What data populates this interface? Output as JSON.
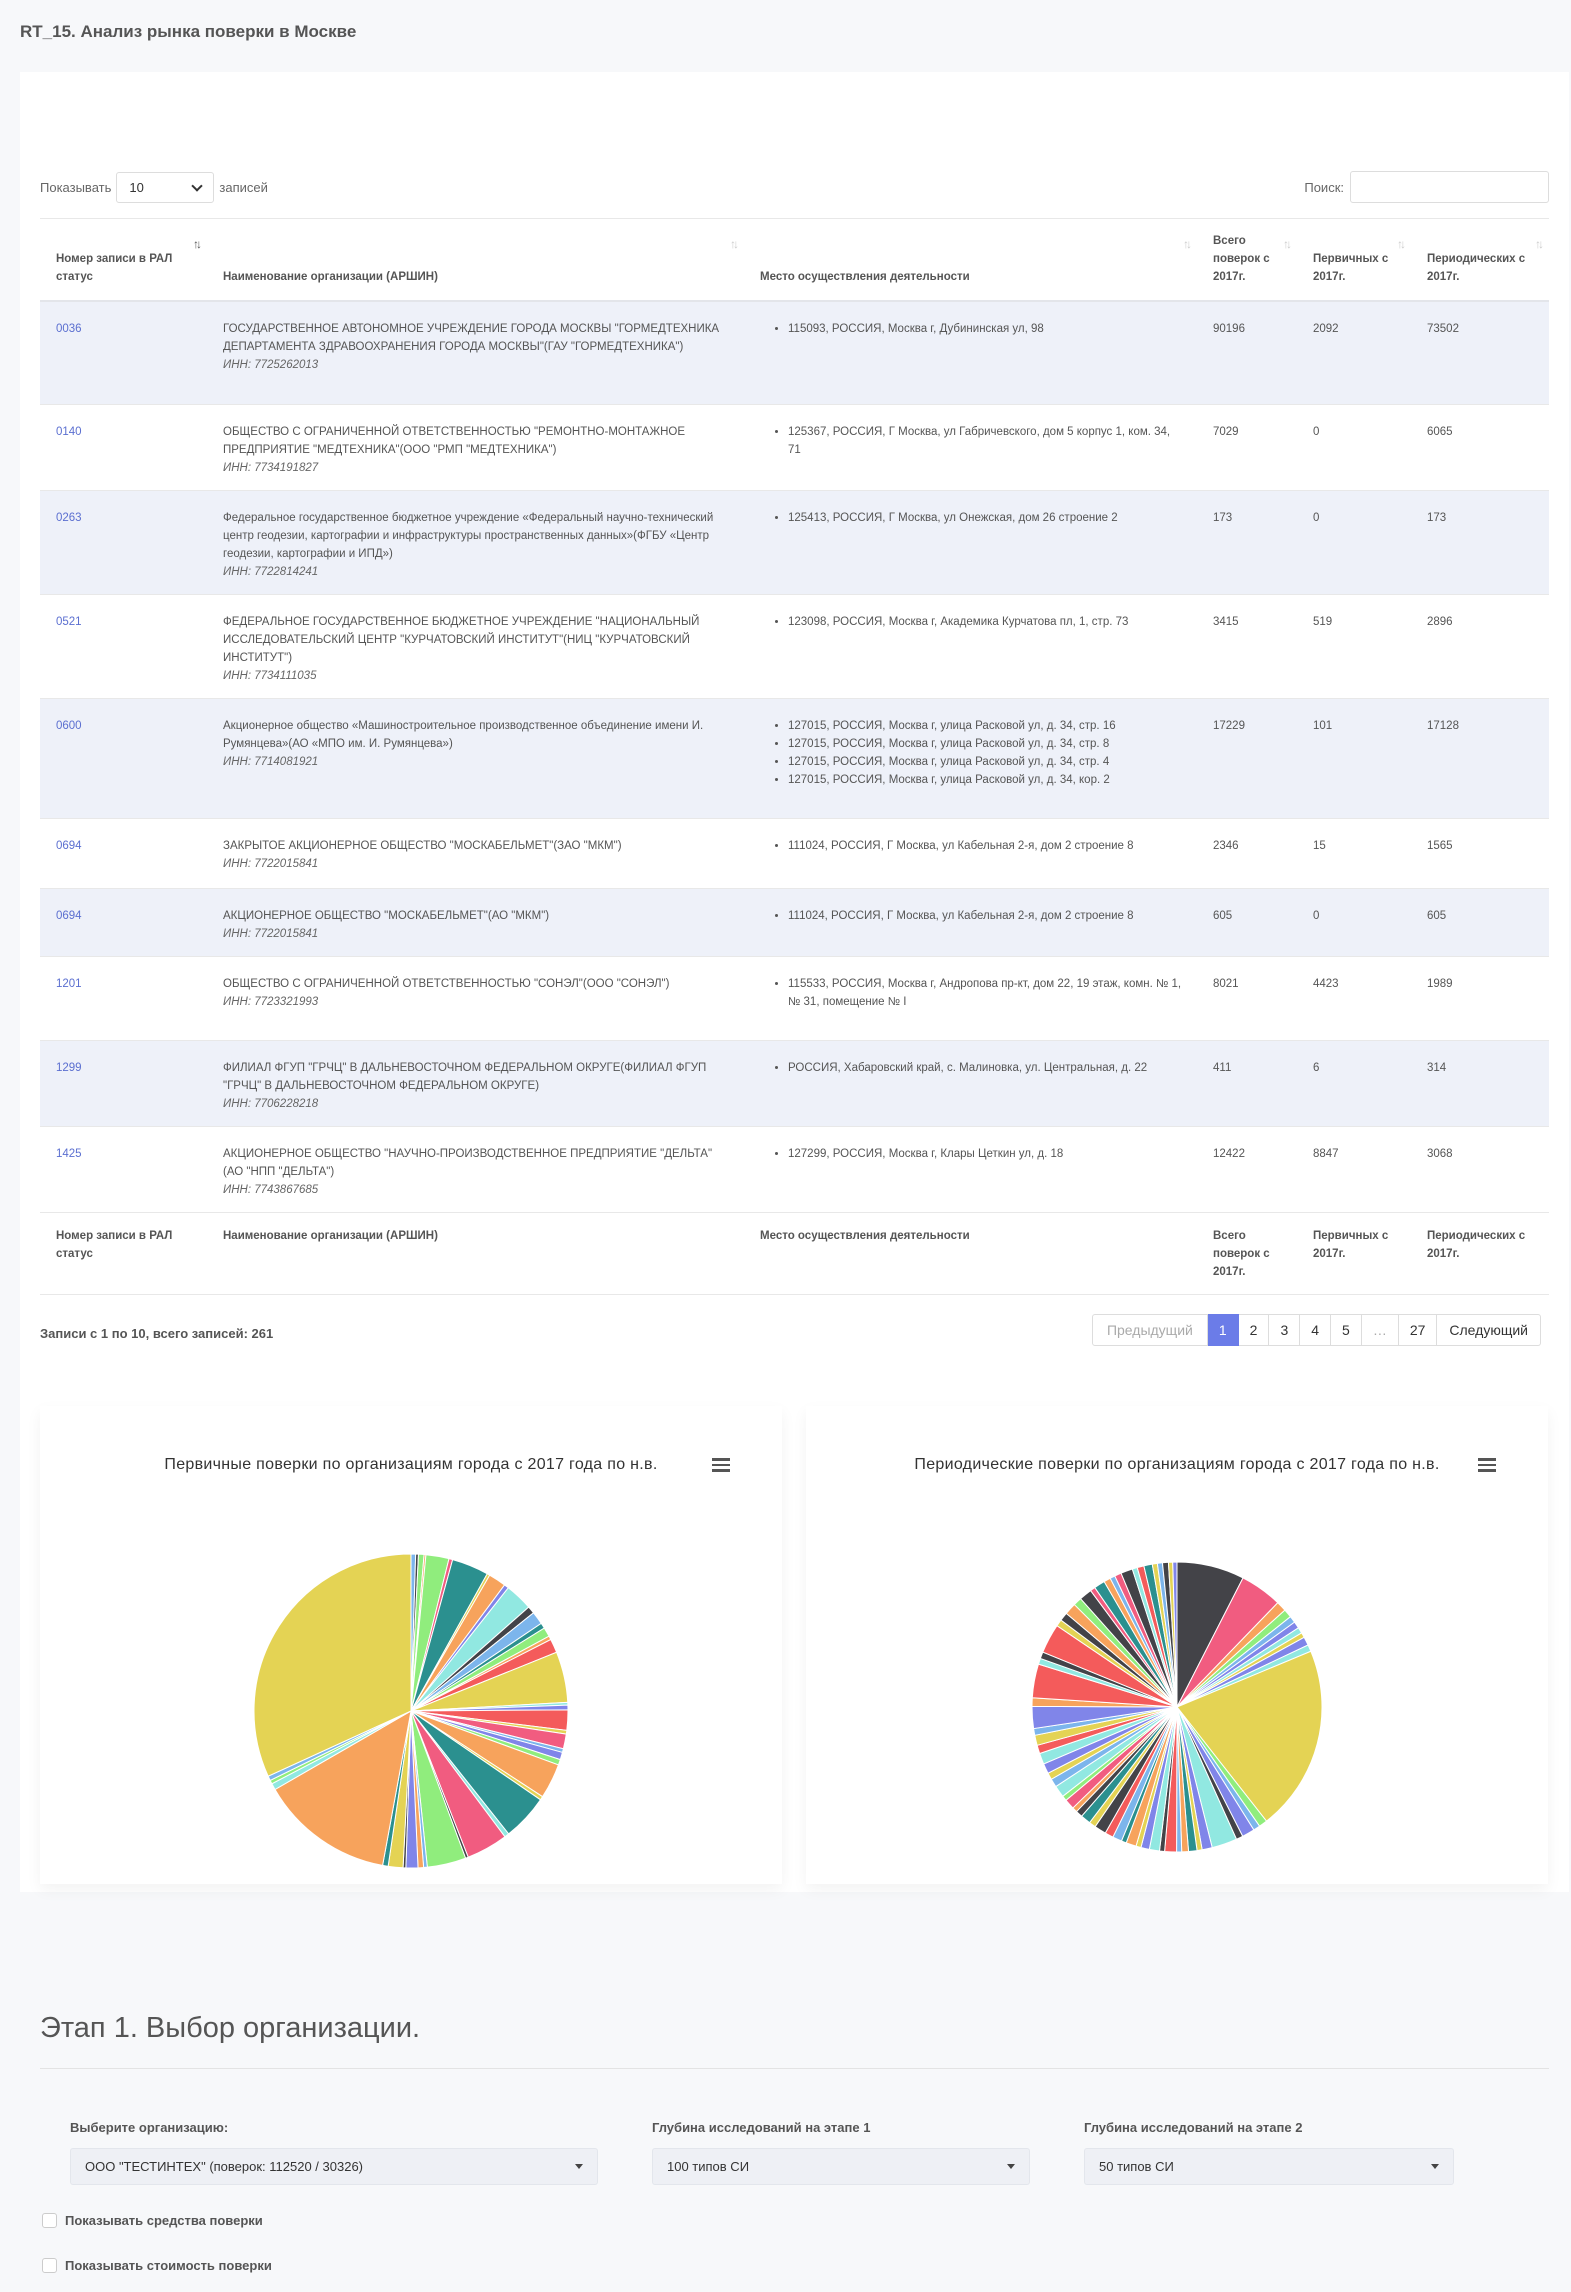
{
  "page": {
    "title": "RT_15. Анализ рынка поверки в Москве"
  },
  "length": {
    "prefix": "Показывать",
    "value": "10",
    "suffix": "записей"
  },
  "search": {
    "label": "Поиск:",
    "value": ""
  },
  "columns": [
    "Номер записи в РАЛ статус",
    "Наименование организации (АРШИН)",
    "Место осуществления деятельности",
    "Всего поверок с 2017г.",
    "Первичных с 2017г.",
    "Периодических с 2017г."
  ],
  "rows": [
    {
      "num": "0036",
      "name": "ГОСУДАРСТВЕННОЕ АВТОНОМНОЕ УЧРЕЖДЕНИЕ ГОРОДА МОСКВЫ \"ГОРМЕДТЕХНИКА ДЕПАРТАМЕНТА ЗДРАВООХРАНЕНИЯ ГОРОДА МОСКВЫ\"(ГАУ \"ГОРМЕДТЕХНИКА\")",
      "inn": "ИНН: 7725262013",
      "places": [
        "115093, РОССИЯ, Москва г, Дубининская ул, 98"
      ],
      "total": "90196",
      "primary": "2092",
      "periodic": "73502"
    },
    {
      "num": "0140",
      "name": "ОБЩЕСТВО С ОГРАНИЧЕННОЙ ОТВЕТСТВЕННОСТЬЮ \"РЕМОНТНО-МОНТАЖНОЕ ПРЕДПРИЯТИЕ \"МЕДТЕХНИКА\"(ООО \"РМП \"МЕДТЕХНИКА\")",
      "inn": "ИНН: 7734191827",
      "places": [
        "125367, РОССИЯ, Г Москва, ул Габричевского, дом 5 корпус 1, ком. 34, 71"
      ],
      "total": "7029",
      "primary": "0",
      "periodic": "6065"
    },
    {
      "num": "0263",
      "name": "Федеральное государственное бюджетное учреждение «Федеральный научно-технический центр геодезии, картографии и инфраструктуры пространственных данных»(ФГБУ «Центр геодезии, картографии и ИПД»)",
      "inn": "ИНН: 7722814241",
      "places": [
        "125413, РОССИЯ, Г Москва, ул Онежская, дом 26 строение 2"
      ],
      "total": "173",
      "primary": "0",
      "periodic": "173"
    },
    {
      "num": "0521",
      "name": "ФЕДЕРАЛЬНОЕ ГОСУДАРСТВЕННОЕ БЮДЖЕТНОЕ УЧРЕЖДЕНИЕ \"НАЦИОНАЛЬНЫЙ ИССЛЕДОВАТЕЛЬСКИЙ ЦЕНТР \"КУРЧАТОВСКИЙ ИНСТИТУТ\"(НИЦ \"КУРЧАТОВСКИЙ ИНСТИТУТ\")",
      "inn": "ИНН: 7734111035",
      "places": [
        "123098, РОССИЯ, Москва г, Академика Курчатова пл, 1, стр. 73"
      ],
      "total": "3415",
      "primary": "519",
      "periodic": "2896"
    },
    {
      "num": "0600",
      "name": "Акционерное общество «Машиностроительное производственное объединение имени И. Румянцева»(АО «МПО им. И. Румянцева»)",
      "inn": "ИНН: 7714081921",
      "places": [
        "127015, РОССИЯ, Москва г, улица Расковой ул, д. 34, стр. 16",
        "127015, РОССИЯ, Москва г, улица Расковой ул, д. 34, стр. 8",
        "127015, РОССИЯ, Москва г, улица Расковой ул, д. 34, стр. 4",
        "127015, РОССИЯ, Москва г, улица Расковой ул, д. 34, кор. 2"
      ],
      "total": "17229",
      "primary": "101",
      "periodic": "17128"
    },
    {
      "num": "0694",
      "name": "ЗАКРЫТОЕ АКЦИОНЕРНОЕ ОБЩЕСТВО \"МОСКАБЕЛЬМЕТ\"(ЗАО \"МКМ\")",
      "inn": "ИНН: 7722015841",
      "places": [
        "111024, РОССИЯ, Г Москва, ул Кабельная 2-я, дом 2 строение 8"
      ],
      "total": "2346",
      "primary": "15",
      "periodic": "1565"
    },
    {
      "num": "0694",
      "name": "АКЦИОНЕРНОЕ ОБЩЕСТВО \"МОСКАБЕЛЬМЕТ\"(АО \"МКМ\")",
      "inn": "ИНН: 7722015841",
      "places": [
        "111024, РОССИЯ, Г Москва, ул Кабельная 2-я, дом 2 строение 8"
      ],
      "total": "605",
      "primary": "0",
      "periodic": "605"
    },
    {
      "num": "1201",
      "name": "ОБЩЕСТВО С ОГРАНИЧЕННОЙ ОТВЕТСТВЕННОСТЬЮ \"СОНЭЛ\"(ООО \"СОНЭЛ\")",
      "inn": "ИНН: 7723321993",
      "places": [
        "115533, РОССИЯ, Москва г, Андропова пр-кт, дом 22, 19 этаж, комн. № 1, № 31, помещение № I"
      ],
      "total": "8021",
      "primary": "4423",
      "periodic": "1989"
    },
    {
      "num": "1299",
      "name": "ФИЛИАЛ ФГУП \"ГРЧЦ\" В ДАЛЬНЕВОСТОЧНОМ ФЕДЕРАЛЬНОМ ОКРУГЕ(ФИЛИАЛ ФГУП \"ГРЧЦ\" В ДАЛЬНЕВОСТОЧНОМ ФЕДЕРАЛЬНОМ ОКРУГЕ)",
      "inn": "ИНН: 7706228218",
      "places": [
        "РОССИЯ, Хабаровский край, с. Малиновка, ул. Центральная, д. 22"
      ],
      "total": "411",
      "primary": "6",
      "periodic": "314"
    },
    {
      "num": "1425",
      "name": "АКЦИОНЕРНОЕ ОБЩЕСТВО \"НАУЧНО-ПРОИЗВОДСТВЕННОЕ ПРЕДПРИЯТИЕ \"ДЕЛЬТА\"(АО \"НПП \"ДЕЛЬТА\")",
      "inn": "ИНН: 7743867685",
      "places": [
        "127299, РОССИЯ, Москва г, Клары Цеткин ул, д. 18"
      ],
      "total": "12422",
      "primary": "8847",
      "periodic": "3068"
    }
  ],
  "info": "Записи с 1 по 10, всего записей: 261",
  "pagination": {
    "prev": "Предыдущий",
    "pages": [
      "1",
      "2",
      "3",
      "4",
      "5",
      "…",
      "27"
    ],
    "active": "1",
    "next": "Следующий"
  },
  "charts": [
    {
      "title": "Первичные поверки по организациям города с 2017 года по н.в.",
      "menu_icon": "hamburger-menu-icon"
    },
    {
      "title": "Периодические поверки по организациям города с 2017 года по н.в.",
      "menu_icon": "hamburger-menu-icon"
    }
  ],
  "chart_data": [
    {
      "type": "pie",
      "title": "Первичные поверки по организациям города с 2017 года по н.в.",
      "values": [
        0.5,
        0.3,
        0.6,
        0.2,
        2.5,
        0.4,
        4,
        0.3,
        1.9,
        0.5,
        3,
        0.8,
        1.4,
        0.6,
        1,
        0.4,
        1.5,
        5.5,
        0.3,
        0.5,
        2.2,
        0.4,
        1.6,
        0.4,
        0.8,
        0.6,
        3.8,
        0.4,
        5,
        0.5,
        4.5,
        0.3,
        4.2,
        0.4,
        0.6,
        1.3,
        0.3,
        1.6,
        0.6,
        14.5,
        0.7,
        0.4,
        0.5,
        33.5
      ],
      "colors": [
        "#7cb5ec",
        "#434348",
        "#90ed7d",
        "#f7a35c",
        "#90ed7d",
        "#f15c80",
        "#2b908f",
        "#e4d354",
        "#f7a35c",
        "#8085e9",
        "#91e8e1",
        "#434348",
        "#7cb5ec",
        "#2b908f",
        "#90ed7d",
        "#f7a35c",
        "#f45b5b",
        "#e4d354",
        "#91e8e1",
        "#8085e9",
        "#f45b5b",
        "#e4d354",
        "#f15c80",
        "#7cb5ec",
        "#8085e9",
        "#90ed7d",
        "#f7a35c",
        "#e4d354",
        "#2b908f",
        "#91e8e1",
        "#f15c80",
        "#434348",
        "#90ed7d",
        "#7cb5ec",
        "#f7a35c",
        "#8085e9",
        "#434348",
        "#e4d354",
        "#2b908f",
        "#f7a35c",
        "#91e8e1",
        "#90ed7d",
        "#7cb5ec",
        "#e4d354"
      ]
    },
    {
      "type": "pie",
      "title": "Периодические поверки по организациям города с 2017 года по н.в.",
      "values": [
        8,
        5,
        1.2,
        1,
        0.8,
        0.8,
        0.7,
        0.6,
        1,
        0.8,
        22,
        1,
        0.8,
        1.5,
        0.8,
        3,
        1.2,
        0.6,
        1,
        0.8,
        0.6,
        1.4,
        0.6,
        1.2,
        1,
        0.6,
        1.2,
        0.6,
        1.1,
        1,
        1.4,
        0.8,
        1.2,
        0.8,
        0.6,
        1.2,
        0.6,
        1.4,
        1,
        0.8,
        1.2,
        1.3,
        1,
        1.2,
        0.8,
        2.6,
        1,
        4,
        0.7,
        0.8,
        3.5,
        0.8,
        1,
        1.4,
        1,
        1.5,
        0.6,
        1.3,
        0.8,
        0.6,
        0.8,
        1.4,
        0.6,
        0.8,
        1,
        0.6,
        0.6,
        0.7,
        0.5,
        0.5
      ],
      "colors": [
        "#434348",
        "#f15c80",
        "#f7a35c",
        "#90ed7d",
        "#7cb5ec",
        "#8085e9",
        "#91e8e1",
        "#e4d354",
        "#8085e9",
        "#91e8e1",
        "#e4d354",
        "#90ed7d",
        "#7cb5ec",
        "#8085e9",
        "#434348",
        "#91e8e1",
        "#8085e9",
        "#e4d354",
        "#2b908f",
        "#f7a35c",
        "#7cb5ec",
        "#f45b5b",
        "#434348",
        "#91e8e1",
        "#8085e9",
        "#e4d354",
        "#f7a35c",
        "#2b908f",
        "#7cb5ec",
        "#f45b5b",
        "#434348",
        "#e4d354",
        "#2b908f",
        "#434348",
        "#f7a35c",
        "#f15c80",
        "#90ed7d",
        "#91e8e1",
        "#7cb5ec",
        "#e4d354",
        "#8085e9",
        "#91e8e1",
        "#f45b5b",
        "#e4d354",
        "#7cb5ec",
        "#8085e9",
        "#f7a35c",
        "#f45b5b",
        "#91e8e1",
        "#434348",
        "#f45b5b",
        "#e4d354",
        "#434348",
        "#f7a35c",
        "#90ed7d",
        "#434348",
        "#f15c80",
        "#2b908f",
        "#f7a35c",
        "#7cb5ec",
        "#f15c80",
        "#434348",
        "#91e8e1",
        "#f45b5b",
        "#2b908f",
        "#e4d354",
        "#7cb5ec",
        "#434348",
        "#e4d354",
        "#8085e9"
      ]
    }
  ],
  "stage": {
    "title": "Этап 1. Выбор организации."
  },
  "filters": {
    "org_label": "Выберите организацию:",
    "org_value": "ООО \"ТЕСТИНТЕХ\" (поверок: 112520 / 30326)",
    "depth1_label": "Глубина исследований на этапе 1",
    "depth1_value": "100 типов СИ",
    "depth2_label": "Глубина исследований на этапе 2",
    "depth2_value": "50 типов СИ"
  },
  "checkboxes": [
    "Показывать средства поверки",
    "Показывать стоимость поверки"
  ]
}
